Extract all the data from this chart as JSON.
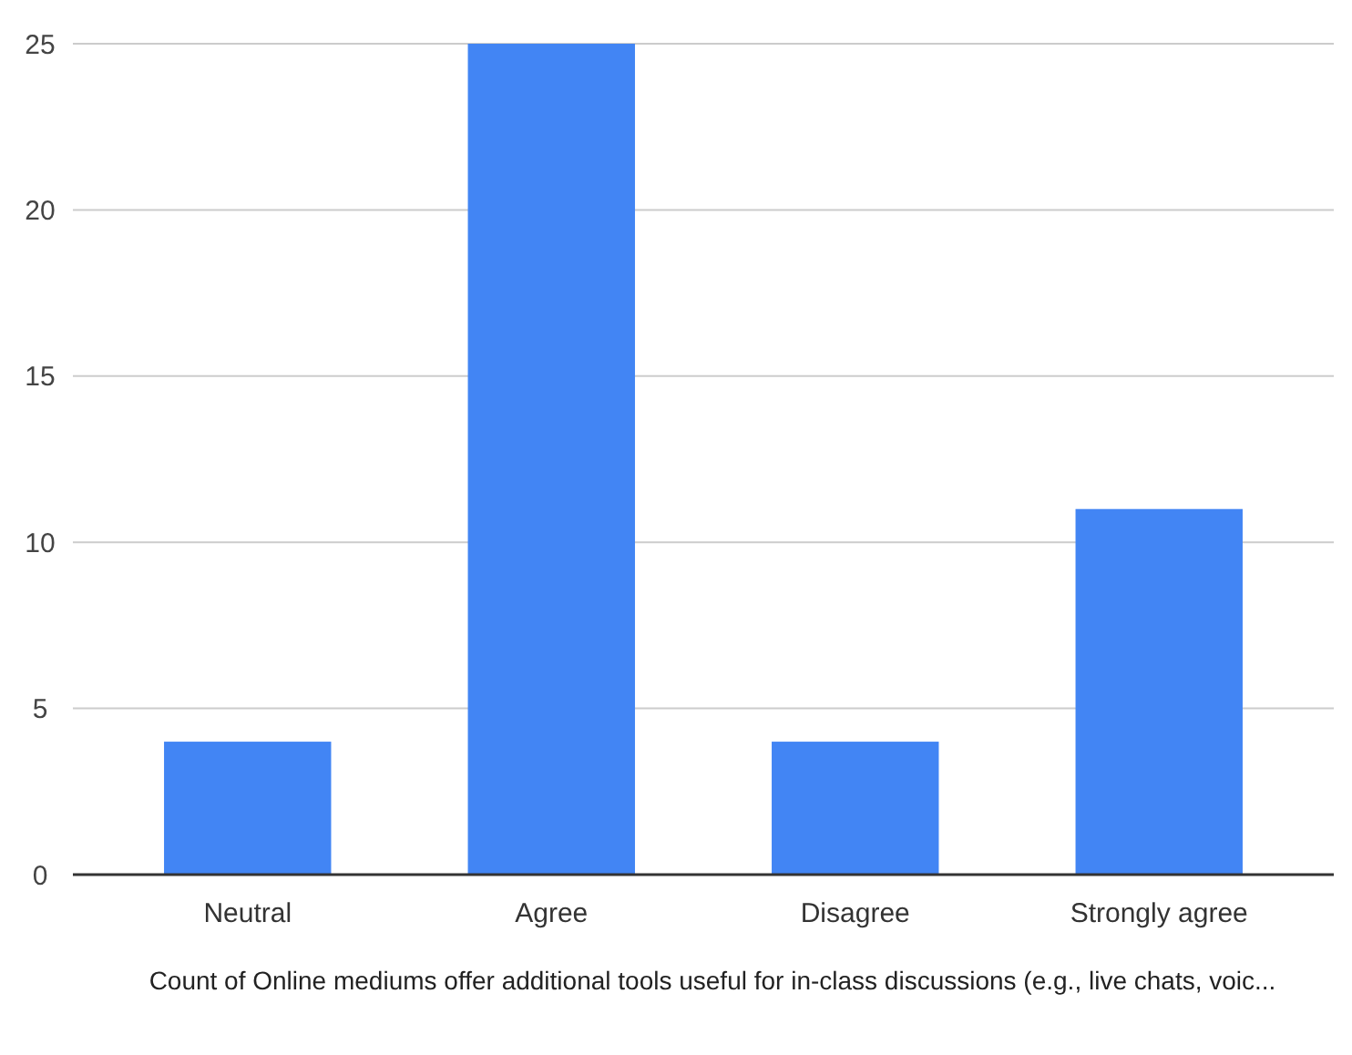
{
  "chart_data": {
    "type": "bar",
    "xlabel": "Count of Online mediums offer additional tools useful for in-class discussions (e.g., live chats, voic...",
    "categories": [
      "Neutral",
      "Agree",
      "Disagree",
      "Strongly agree"
    ],
    "values": [
      4,
      25,
      4,
      11
    ],
    "color": "#4285f4",
    "ylim": [
      0,
      25
    ],
    "yticks": [
      0,
      5,
      10,
      15,
      20,
      25
    ],
    "grid": "y"
  }
}
